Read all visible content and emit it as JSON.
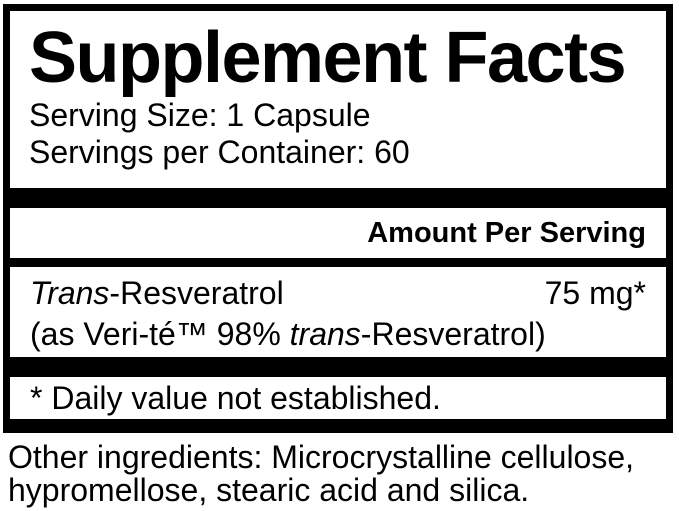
{
  "colors": {
    "background": "#ffffff",
    "text": "#000000",
    "panel_border": "#000000"
  },
  "supplement_facts": {
    "title": "Supplement Facts",
    "serving_size": "Serving Size: 1 Capsule",
    "servings_per_container": "Servings per Container: 60",
    "amount_per_serving_header": "Amount Per Serving",
    "ingredient": {
      "name_italic": "Trans",
      "name_regular": "-Resveratrol",
      "amount": "75 mg*",
      "source_prefix": "(as Veri-té™ 98% ",
      "source_italic": "trans",
      "source_suffix": "-Resveratrol)"
    },
    "footnote": "* Daily value not established.",
    "other_ingredients_lines": [
      "Other ingredients: Microcrystalline cellulose,",
      "hypromellose, stearic acid and silica."
    ]
  }
}
